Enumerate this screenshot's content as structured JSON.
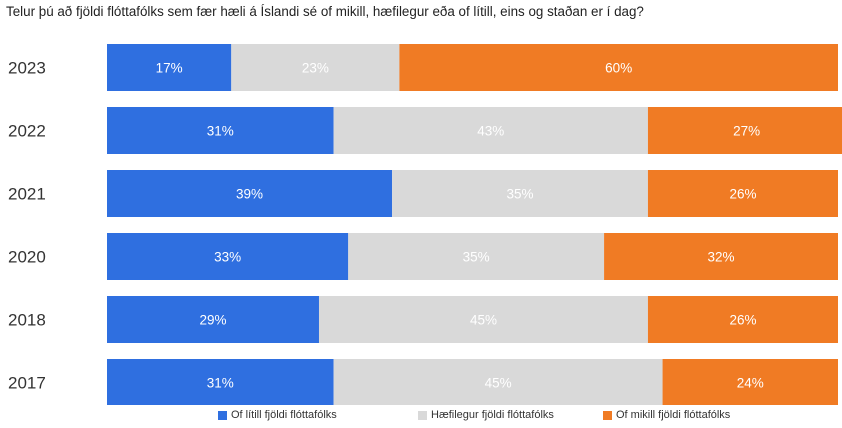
{
  "title": "Telur þú að fjöldi flóttafólks sem fær hæli á Íslandi sé of mikill, hæfilegur eða of lítill, eins og staðan er í dag?",
  "colors": {
    "of_litill": "#2f6fe0",
    "haefilegur": "#d9d9d9",
    "of_mikill": "#f07b24",
    "label_light": "#ffffff"
  },
  "chart_data": {
    "type": "bar",
    "orientation": "horizontal",
    "stacked": true,
    "percent_stacked": true,
    "categories": [
      "2023",
      "2022",
      "2021",
      "2020",
      "2018",
      "2017"
    ],
    "series": [
      {
        "name": "Of lítill fjöldi flóttafólks",
        "values": [
          17,
          31,
          39,
          33,
          29,
          31
        ],
        "labels": [
          "17%",
          "31%",
          "39%",
          "33%",
          "29%",
          "31%"
        ]
      },
      {
        "name": "Hæfilegur fjöldi flóttafólks",
        "values": [
          23,
          43,
          35,
          35,
          45,
          45
        ],
        "labels": [
          "23%",
          "43%",
          "35%",
          "35%",
          "45%",
          "45%"
        ]
      },
      {
        "name": "Of mikill fjöldi flóttafólks",
        "values": [
          60,
          27,
          26,
          32,
          26,
          24
        ],
        "labels": [
          "60%",
          "27%",
          "26%",
          "32%",
          "26%",
          "24%"
        ]
      }
    ],
    "xlim": [
      0,
      100
    ],
    "grid": false,
    "legend_position": "bottom"
  }
}
